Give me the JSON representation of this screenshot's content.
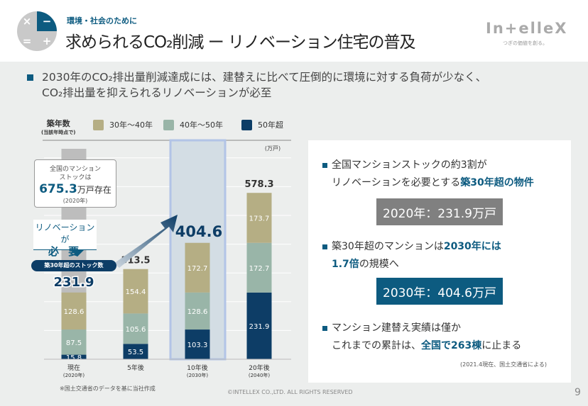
{
  "header": {
    "subtitle": "環境・社会のために",
    "title": "求められるCO₂削減 ー リノベーション住宅の普及",
    "brand": "In+elleX",
    "tagline": "つぎの価値を創る。",
    "logo_symbols": [
      "×",
      "−",
      "=",
      "+"
    ]
  },
  "lead": {
    "line1": "2030年のCO₂排出量削減達成には、建替えに比べて圧倒的に環境に対する負荷が少なく、",
    "line2": "CO₂排出量を抑えられるリノベーションが必至"
  },
  "legend": {
    "title": "築年数",
    "title_sub": "(当該年時点で)",
    "items": [
      {
        "label": "30年〜40年",
        "color": "#b5ae84"
      },
      {
        "label": "40年〜50年",
        "color": "#99b5a8"
      },
      {
        "label": "50年超",
        "color": "#0d3d66"
      }
    ],
    "unit": "(万戸)"
  },
  "callout": {
    "line1": "全国のマンション",
    "line2": "ストックは",
    "value": "675.3",
    "unit": "万戸存在",
    "year": "(2020年)"
  },
  "renovation": {
    "line1": "リノベーションが",
    "line2": "必 要"
  },
  "pill": "築30年超のストック数",
  "highlight_value": "404.6",
  "chart_data": {
    "type": "bar",
    "stacked": true,
    "categories": [
      "現在",
      "5年後",
      "10年後",
      "20年後"
    ],
    "category_sub": [
      "(2020年)",
      "",
      "(2030年)",
      "(2040年)"
    ],
    "series": [
      {
        "name": "50年超",
        "values": [
          15.8,
          53.5,
          103.3,
          231.9
        ]
      },
      {
        "name": "40年〜50年",
        "values": [
          87.5,
          105.6,
          128.6,
          172.7
        ]
      },
      {
        "name": "30年〜40年",
        "values": [
          128.6,
          154.4,
          172.7,
          173.7
        ]
      }
    ],
    "totals": [
      "231.9",
      "313.5",
      "404.6",
      "578.3"
    ],
    "total_stock_2020": 675.3,
    "ylim": [
      0,
      700
    ],
    "ylabel": "(万戸)",
    "highlight_category": "10年後"
  },
  "note": "※国土交通省のデータを基に当社作成",
  "panel": {
    "p1a": "全国マンションストックの約3割が",
    "p1b": "リノベーションを必要とする",
    "p1b_hl": "築30年超の物件",
    "box1": "2020年：231.9万戸",
    "p2a": "築30年超のマンションは",
    "p2a_hl": "2030年には",
    "p2b_hl": "1.7倍",
    "p2b": "の規模へ",
    "box2": "2030年：404.6万戸",
    "p3a": "マンション建替え実績は僅か",
    "p3b": "これまでの累計は、",
    "p3b_hl": "全国で263棟",
    "p3b2": "に止まる",
    "source": "(2021.4現在、国土交通省による)",
    "box1_color": "#808080",
    "box2_color": "#0d5b80"
  },
  "footer": "©INTELLEX CO.,LTD. ALL RIGHTS RESERVED",
  "page": "9"
}
